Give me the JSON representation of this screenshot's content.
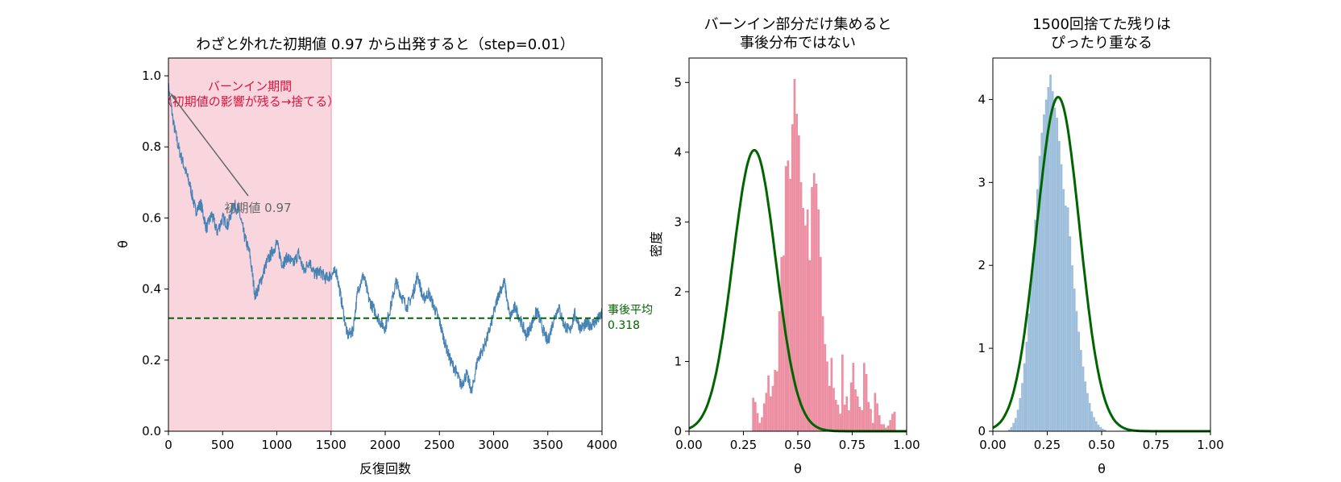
{
  "colors": {
    "trace": "#4682b4",
    "burnin_shade": "#f9d5de",
    "burnin_line": "#f2b3c4",
    "burnin_hist": "#ec8fa3",
    "posterior_hist": "#9ebfdb",
    "posterior_curve": "#006400",
    "annotation_red": "#dc143c",
    "annotation_gray": "#666666"
  },
  "chart_data": [
    {
      "type": "line",
      "title": "わざと外れた初期値 0.97 から出発すると（step=0.01）",
      "xlabel": "反復回数",
      "ylabel": "θ",
      "xlim": [
        0,
        4000
      ],
      "ylim": [
        0,
        1.05
      ],
      "xticks": [
        "0",
        "500",
        "1000",
        "1500",
        "2000",
        "2500",
        "3000",
        "3500",
        "4000"
      ],
      "yticks": [
        "0.0",
        "0.2",
        "0.4",
        "0.6",
        "0.8",
        "1.0"
      ],
      "burnin_region": [
        0,
        1500
      ],
      "burnin_label": [
        "バーンイン期間",
        "（初期値の影響が残る→捨てる）"
      ],
      "initial_label": "初期値 0.97",
      "initial_value": 0.97,
      "posterior_mean": 0.318,
      "mean_label": [
        "事後平均",
        "0.318"
      ],
      "series": [
        {
          "x": [
            0,
            50,
            100,
            150,
            200,
            250,
            300,
            350,
            400,
            450,
            500,
            550,
            600,
            650,
            700,
            750,
            800,
            850,
            900,
            950,
            1000,
            1050,
            1100,
            1150,
            1200,
            1250,
            1300,
            1350,
            1400,
            1450,
            1500,
            1550,
            1600,
            1650,
            1700,
            1750,
            1800,
            1850,
            1900,
            1950,
            2000,
            2050,
            2100,
            2150,
            2200,
            2250,
            2300,
            2350,
            2400,
            2450,
            2500,
            2550,
            2600,
            2650,
            2700,
            2750,
            2800,
            2850,
            2900,
            2950,
            3000,
            3050,
            3100,
            3150,
            3200,
            3250,
            3300,
            3350,
            3400,
            3450,
            3500,
            3550,
            3600,
            3650,
            3700,
            3750,
            3800,
            3850,
            3900,
            3950,
            4000
          ],
          "y": [
            0.97,
            0.86,
            0.79,
            0.74,
            0.69,
            0.62,
            0.64,
            0.57,
            0.61,
            0.56,
            0.6,
            0.58,
            0.64,
            0.62,
            0.55,
            0.5,
            0.38,
            0.42,
            0.47,
            0.5,
            0.53,
            0.47,
            0.49,
            0.47,
            0.5,
            0.45,
            0.48,
            0.44,
            0.45,
            0.43,
            0.44,
            0.45,
            0.36,
            0.27,
            0.28,
            0.4,
            0.44,
            0.37,
            0.34,
            0.31,
            0.29,
            0.35,
            0.42,
            0.38,
            0.35,
            0.38,
            0.44,
            0.37,
            0.39,
            0.35,
            0.31,
            0.25,
            0.2,
            0.17,
            0.13,
            0.16,
            0.11,
            0.2,
            0.23,
            0.27,
            0.33,
            0.39,
            0.42,
            0.32,
            0.35,
            0.31,
            0.27,
            0.3,
            0.34,
            0.29,
            0.25,
            0.31,
            0.35,
            0.3,
            0.28,
            0.33,
            0.29,
            0.3,
            0.3,
            0.31,
            0.33
          ]
        }
      ]
    },
    {
      "type": "bar",
      "title": [
        "バーンイン部分だけ集めると",
        "事後分布ではない"
      ],
      "xlabel": "θ",
      "ylabel": "密度",
      "xlim": [
        0,
        1
      ],
      "ylim": [
        0,
        5.35
      ],
      "xticks": [
        "0.00",
        "0.25",
        "0.50",
        "0.75",
        "1.00"
      ],
      "yticks": [
        "0",
        "1",
        "2",
        "3",
        "4",
        "5"
      ],
      "bin_start": 0.29,
      "bin_width": 0.01,
      "values": [
        0.48,
        0.42,
        0.26,
        0.12,
        0.2,
        0.4,
        0.55,
        0.8,
        0.5,
        0.65,
        0.88,
        0.86,
        1.72,
        2.5,
        2.52,
        3.8,
        3.88,
        3.62,
        4.4,
        5.05,
        4.55,
        4.24,
        3.57,
        3.2,
        2.95,
        3.18,
        2.45,
        3.5,
        3.7,
        3.55,
        3.18,
        2.5,
        1.65,
        1.25,
        1.0,
        0.65,
        1.05,
        0.62,
        0.45,
        0.38,
        0.25,
        1.1,
        0.38,
        0.5,
        0.3,
        0.7,
        0.98,
        0.6,
        0.5,
        0.35,
        0.3,
        0.98,
        0.82,
        0.42,
        0.32,
        0.12,
        0.55,
        0.4,
        0.23,
        0.1,
        0.1,
        0.05,
        0.08,
        0.16,
        0.25,
        0.28
      ],
      "curve": {
        "type": "normal",
        "mean": 0.3,
        "sd": 0.099
      }
    },
    {
      "type": "bar",
      "title": [
        "1500回捨てた残りは",
        "ぴったり重なる"
      ],
      "xlabel": "θ",
      "ylabel": "",
      "xlim": [
        0,
        1
      ],
      "ylim": [
        0,
        4.5
      ],
      "xticks": [
        "0.00",
        "0.25",
        "0.50",
        "0.75",
        "1.00"
      ],
      "yticks": [
        "0",
        "1",
        "2",
        "3",
        "4"
      ],
      "bin_start": 0.07,
      "bin_width": 0.01,
      "values": [
        0.02,
        0.05,
        0.1,
        0.16,
        0.26,
        0.4,
        0.58,
        0.82,
        1.08,
        1.42,
        1.8,
        2.15,
        2.55,
        2.92,
        3.32,
        3.6,
        3.82,
        4.0,
        4.15,
        4.3,
        4.1,
        3.9,
        3.78,
        3.5,
        3.22,
        2.92,
        2.72,
        2.7,
        2.35,
        2.0,
        1.72,
        1.45,
        1.2,
        0.98,
        0.78,
        0.6,
        0.46,
        0.34,
        0.24,
        0.17,
        0.12,
        0.08,
        0.05,
        0.03,
        0.02
      ],
      "curve": {
        "type": "normal",
        "mean": 0.3,
        "sd": 0.099
      }
    }
  ]
}
